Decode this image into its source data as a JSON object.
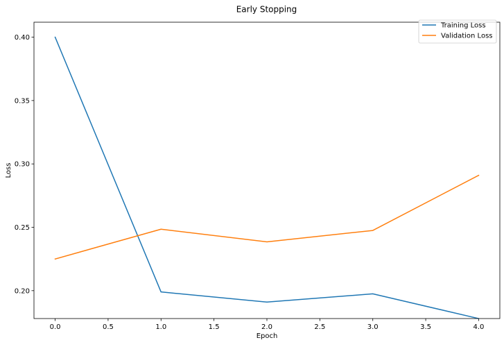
{
  "chart_data": {
    "type": "line",
    "title": "Early Stopping",
    "xlabel": "Epoch",
    "ylabel": "Loss",
    "xlim": [
      -0.2,
      4.2
    ],
    "ylim": [
      0.178,
      0.4118
    ],
    "xticks": [
      0.0,
      0.5,
      1.0,
      1.5,
      2.0,
      2.5,
      3.0,
      3.5,
      4.0
    ],
    "xtick_labels": [
      "0.0",
      "0.5",
      "1.0",
      "1.5",
      "2.0",
      "2.5",
      "3.0",
      "3.5",
      "4.0"
    ],
    "yticks": [
      0.2,
      0.25,
      0.3,
      0.35,
      0.4
    ],
    "ytick_labels": [
      "0.20",
      "0.25",
      "0.30",
      "0.35",
      "0.40"
    ],
    "grid": false,
    "legend_position": "top-right",
    "x": [
      0,
      1,
      2,
      3,
      4
    ],
    "series": [
      {
        "name": "Training Loss",
        "color": "#1f77b4",
        "values": [
          0.4,
          0.199,
          0.191,
          0.1975,
          0.178
        ]
      },
      {
        "name": "Validation Loss",
        "color": "#ff7f0e",
        "values": [
          0.225,
          0.2485,
          0.2385,
          0.2475,
          0.291
        ]
      }
    ]
  }
}
